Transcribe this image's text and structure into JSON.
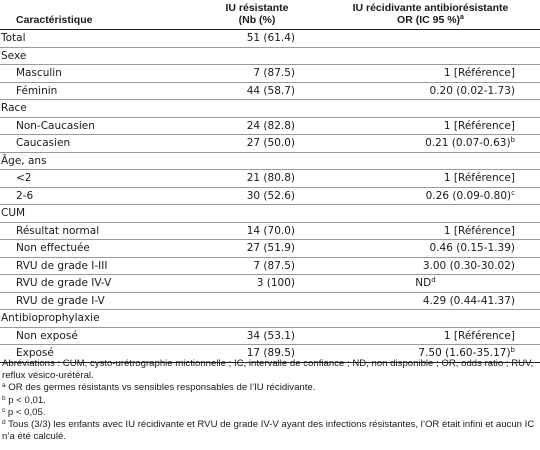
{
  "header": {
    "col1": "Caractéristique",
    "col2_line1": "IU résistante",
    "col2_line2": "(Nb (%)",
    "col3_line1": "IU récidivante antibiorésistante",
    "col3_line2": "OR (IC 95 %)",
    "col3_sup": "a"
  },
  "rows": [
    {
      "label": "Total",
      "n": "51 (61.4)",
      "or": "",
      "sup": "",
      "sub": false
    },
    {
      "label": "Sexe",
      "n": "",
      "or": "",
      "sup": "",
      "sub": false
    },
    {
      "label": "Masculin",
      "n": "7 (87.5)",
      "or": "1 [Référence]",
      "sup": "",
      "sub": true
    },
    {
      "label": "Féminin",
      "n": "44 (58.7)",
      "or": "0.20 (0.02-1.73)",
      "sup": "",
      "sub": true
    },
    {
      "label": "Race",
      "n": "",
      "or": "",
      "sup": "",
      "sub": false
    },
    {
      "label": "Non-Caucasien",
      "n": "24 (82.8)",
      "or": "1 [Référence]",
      "sup": "",
      "sub": true
    },
    {
      "label": "Caucasien",
      "n": "27 (50.0)",
      "or": "0.21 (0.07-0.63)",
      "sup": "b",
      "sub": true
    },
    {
      "label": "Âge, ans",
      "n": "",
      "or": "",
      "sup": "",
      "sub": false
    },
    {
      "label": "<2",
      "n": "21 (80.8)",
      "or": "1 [Référence]",
      "sup": "",
      "sub": true
    },
    {
      "label": "2-6",
      "n": "30 (52.6)",
      "or": "0.26 (0.09-0.80)",
      "sup": "c",
      "sub": true
    },
    {
      "label": "CUM",
      "n": "",
      "or": "",
      "sup": "",
      "sub": false
    },
    {
      "label": "Résultat normal",
      "n": "14 (70.0)",
      "or": "1 [Référence]",
      "sup": "",
      "sub": true
    },
    {
      "label": "Non effectuée",
      "n": "27 (51.9)",
      "or": "0.46 (0.15-1.39)",
      "sup": "",
      "sub": true
    },
    {
      "label": "RVU de grade I-III",
      "n": "7 (87.5)",
      "or": "3.00 (0.30-30.02)",
      "sup": "",
      "sub": true
    },
    {
      "label": "RVU de grade IV-V",
      "n": "3 (100)",
      "or": "ND",
      "sup": "d",
      "sub": true,
      "center": true
    },
    {
      "label": "RVU de grade I-V",
      "n": "",
      "or": "4.29 (0.44-41.37)",
      "sup": "",
      "sub": true
    },
    {
      "label": "Antibioprophylaxie",
      "n": "",
      "or": "",
      "sup": "",
      "sub": false
    },
    {
      "label": "Non exposé",
      "n": "34 (53.1)",
      "or": "1 [Référence]",
      "sup": "",
      "sub": true
    },
    {
      "label": "Exposé",
      "n": "17 (89.5)",
      "or": "7.50 (1.60-35.17)",
      "sup": "b",
      "sub": true
    }
  ],
  "notes": {
    "abbrev": "Abréviations : CUM, cysto-urétrographie mictionnelle ; IC, intervalle de confiance ; ND, non disponible ; OR, odds ratio ; RUV, reflux vésico-urétéral.",
    "a_mark": "a",
    "a_text": " OR des germes résistants vs sensibles responsables de l’IU récidivante.",
    "b_mark": "b",
    "b_text": " p < 0,01.",
    "c_mark": "c",
    "c_text": " p < 0,05.",
    "d_mark": "d",
    "d_text": " Tous (3/3) les enfants avec IU récidivante et RVU de grade IV-V ayant des infections résistantes, l’OR était infini et aucun IC n’a été calculé."
  }
}
